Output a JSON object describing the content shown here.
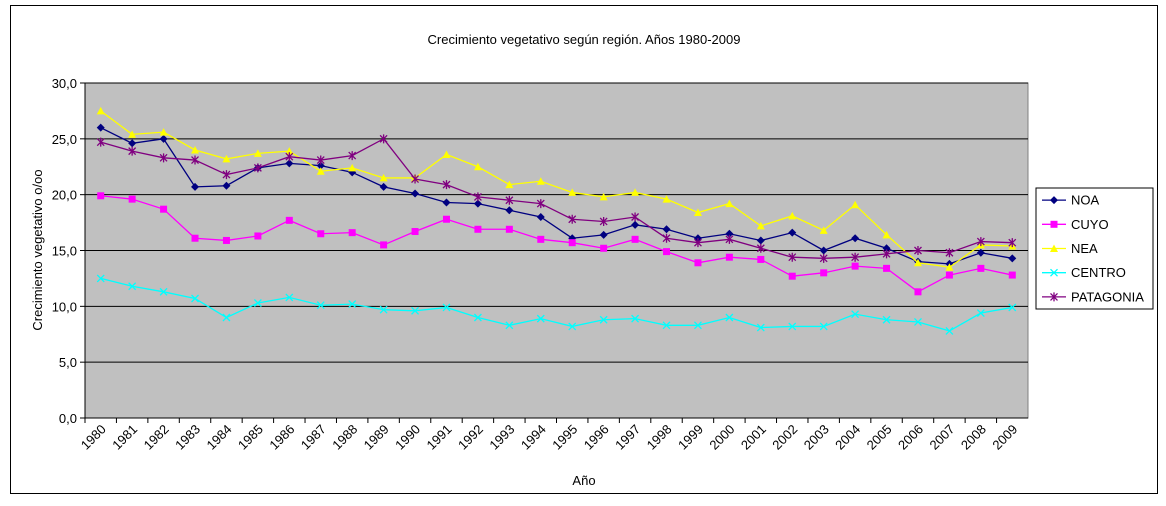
{
  "chart_data": {
    "type": "line",
    "title": "Crecimiento vegetativo según región. Años 1980-2009",
    "x_label": "Año",
    "y_label": "Crecimiento vegetativo o/oo",
    "categories": [
      "1980",
      "1981",
      "1982",
      "1983",
      "1984",
      "1985",
      "1986",
      "1987",
      "1988",
      "1989",
      "1990",
      "1991",
      "1992",
      "1993",
      "1994",
      "1995",
      "1996",
      "1997",
      "1998",
      "1999",
      "2000",
      "2001",
      "2002",
      "2003",
      "2004",
      "2005",
      "2006",
      "2007",
      "2008",
      "2009"
    ],
    "series": [
      {
        "name": "NOA",
        "color": "#000080",
        "marker": "diamond",
        "values": [
          26.0,
          24.6,
          25.0,
          20.7,
          20.8,
          22.4,
          22.8,
          22.6,
          22.0,
          20.7,
          20.1,
          19.3,
          19.2,
          18.6,
          18.0,
          16.1,
          16.4,
          17.3,
          16.9,
          16.1,
          16.5,
          15.9,
          16.6,
          15.0,
          16.1,
          15.2,
          14.0,
          13.8,
          14.8,
          14.3
        ]
      },
      {
        "name": "CUYO",
        "color": "#ff00ff",
        "marker": "square",
        "values": [
          19.9,
          19.6,
          18.7,
          16.1,
          15.9,
          16.3,
          17.7,
          16.5,
          16.6,
          15.5,
          16.7,
          17.8,
          16.9,
          16.9,
          16.0,
          15.7,
          15.2,
          16.0,
          14.9,
          13.9,
          14.4,
          14.2,
          12.7,
          13.0,
          13.6,
          13.4,
          11.3,
          12.8,
          13.4,
          12.8
        ]
      },
      {
        "name": "NEA",
        "color": "#ffff00",
        "marker": "triangle",
        "values": [
          27.5,
          25.4,
          25.6,
          24.0,
          23.2,
          23.7,
          23.9,
          22.1,
          22.4,
          21.5,
          21.5,
          23.6,
          22.5,
          20.9,
          21.2,
          20.2,
          19.8,
          20.2,
          19.6,
          18.4,
          19.2,
          17.2,
          18.1,
          16.8,
          19.1,
          16.4,
          13.9,
          13.5,
          15.5,
          15.4
        ]
      },
      {
        "name": "CENTRO",
        "color": "#00ffff",
        "marker": "x",
        "values": [
          12.5,
          11.8,
          11.3,
          10.7,
          9.0,
          10.3,
          10.8,
          10.1,
          10.2,
          9.7,
          9.6,
          9.9,
          9.0,
          8.3,
          8.9,
          8.2,
          8.8,
          8.9,
          8.3,
          8.3,
          9.0,
          8.1,
          8.2,
          8.2,
          9.3,
          8.8,
          8.6,
          7.8,
          9.4,
          9.9
        ]
      },
      {
        "name": "PATAGONIA",
        "color": "#800080",
        "marker": "star",
        "values": [
          24.7,
          23.9,
          23.3,
          23.1,
          21.8,
          22.4,
          23.4,
          23.1,
          23.5,
          25.0,
          21.4,
          20.9,
          19.8,
          19.5,
          19.2,
          17.8,
          17.6,
          18.0,
          16.1,
          15.7,
          16.0,
          15.2,
          14.4,
          14.3,
          14.4,
          14.7,
          15.0,
          14.8,
          15.8,
          15.7
        ]
      }
    ],
    "ylim": [
      0,
      30
    ],
    "yticks": [
      {
        "value": 0,
        "label": "0,0"
      },
      {
        "value": 5,
        "label": "5,0"
      },
      {
        "value": 10,
        "label": "10,0"
      },
      {
        "value": 15,
        "label": "15,0"
      },
      {
        "value": 20,
        "label": "20,0"
      },
      {
        "value": 25,
        "label": "25,0"
      },
      {
        "value": 30,
        "label": "30,0"
      }
    ],
    "grid": true,
    "legend": "right",
    "plot_background": "#c0c0c0"
  }
}
